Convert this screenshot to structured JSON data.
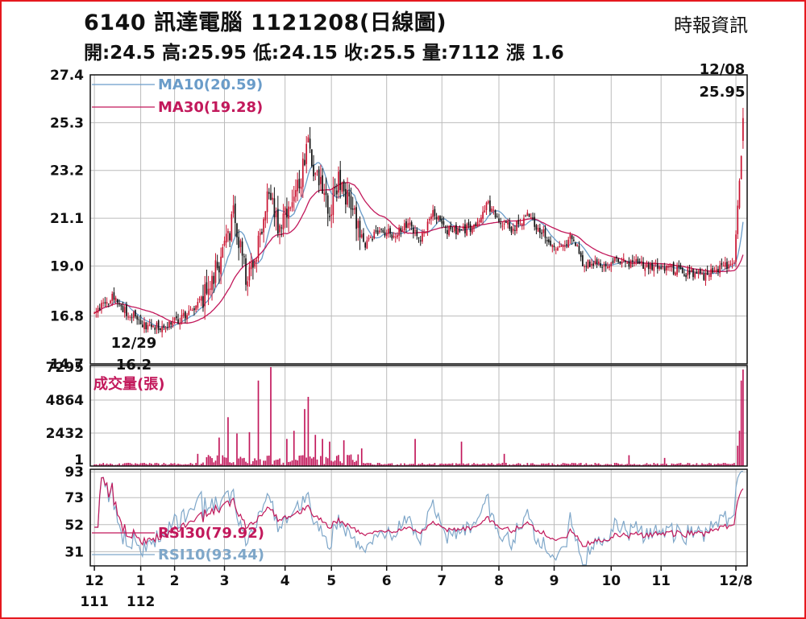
{
  "header": {
    "title": "6140  訊達電腦 1121208(日線圖)",
    "source": "時報資訊",
    "ohlc": "開:24.5 高:25.95 低:24.15 收:25.5 量:7112 漲 1.6"
  },
  "chart_data": {
    "type": "candlestick",
    "colors": {
      "up": "#c8102e",
      "down": "#111111",
      "ma10": "#6a9cc9",
      "ma30": "#c2185b",
      "volume": "#c2185b",
      "rsi30": "#c2185b",
      "rsi10": "#7fa7c9",
      "grid": "#bbbbbb"
    },
    "price_panel": {
      "yticks": [
        "27.4",
        "25.3",
        "23.2",
        "21.1",
        "19.0",
        "16.8",
        "14.7"
      ],
      "ylim": [
        14.7,
        27.4
      ],
      "legend": [
        {
          "label": "MA10(20.59)",
          "color": "#6a9cc9"
        },
        {
          "label": "MA30(19.28)",
          "color": "#c2185b"
        }
      ],
      "annotations": [
        {
          "date": "12/29",
          "value": "16.2"
        },
        {
          "date": "12/08",
          "value": "25.95"
        }
      ],
      "low_value": 16.2,
      "high_value": 25.95,
      "keypoints": [
        [
          0,
          17.1
        ],
        [
          5,
          17.3
        ],
        [
          10,
          17.6
        ],
        [
          18,
          17.0
        ],
        [
          25,
          16.6
        ],
        [
          32,
          16.3
        ],
        [
          40,
          16.4
        ],
        [
          48,
          16.7
        ],
        [
          55,
          16.9
        ],
        [
          60,
          17.5
        ],
        [
          65,
          18.4
        ],
        [
          72,
          19.5
        ],
        [
          78,
          21.2
        ],
        [
          83,
          19.2
        ],
        [
          86,
          18.3
        ],
        [
          92,
          20.0
        ],
        [
          97,
          22.0
        ],
        [
          104,
          20.8
        ],
        [
          110,
          21.6
        ],
        [
          116,
          23.0
        ],
        [
          120,
          24.3
        ],
        [
          126,
          22.6
        ],
        [
          132,
          21.4
        ],
        [
          137,
          22.8
        ],
        [
          142,
          22.1
        ],
        [
          148,
          20.6
        ],
        [
          152,
          20.0
        ],
        [
          160,
          20.6
        ],
        [
          168,
          20.4
        ],
        [
          176,
          20.9
        ],
        [
          182,
          20.1
        ],
        [
          190,
          21.3
        ],
        [
          198,
          20.6
        ],
        [
          206,
          20.5
        ],
        [
          214,
          20.8
        ],
        [
          220,
          21.8
        ],
        [
          226,
          21.2
        ],
        [
          234,
          20.6
        ],
        [
          242,
          21.2
        ],
        [
          248,
          20.8
        ],
        [
          256,
          20.1
        ],
        [
          262,
          19.7
        ],
        [
          268,
          20.3
        ],
        [
          274,
          19.2
        ],
        [
          282,
          19.0
        ],
        [
          292,
          19.2
        ],
        [
          302,
          19.1
        ],
        [
          312,
          19.0
        ],
        [
          322,
          18.9
        ],
        [
          332,
          18.7
        ],
        [
          342,
          18.6
        ],
        [
          350,
          18.9
        ],
        [
          356,
          19.0
        ],
        [
          359,
          19.2
        ],
        [
          361,
          21.6
        ],
        [
          363,
          23.9
        ],
        [
          364,
          25.5
        ]
      ]
    },
    "volume_panel": {
      "yticks": [
        "7295",
        "4864",
        "2432",
        "1"
      ],
      "ylim": [
        1,
        7295
      ],
      "label": "成交量(張)",
      "spikes": [
        [
          58,
          900
        ],
        [
          70,
          2100
        ],
        [
          75,
          3600
        ],
        [
          80,
          2400
        ],
        [
          87,
          2500
        ],
        [
          92,
          6300
        ],
        [
          99,
          7295
        ],
        [
          108,
          2000
        ],
        [
          112,
          2600
        ],
        [
          118,
          4200
        ],
        [
          120,
          5100
        ],
        [
          124,
          2300
        ],
        [
          128,
          2000
        ],
        [
          132,
          1800
        ],
        [
          140,
          1900
        ],
        [
          150,
          1300
        ],
        [
          180,
          2000
        ],
        [
          206,
          1800
        ],
        [
          230,
          900
        ],
        [
          300,
          800
        ],
        [
          320,
          600
        ],
        [
          361,
          1500
        ],
        [
          362,
          2600
        ],
        [
          363,
          6300
        ],
        [
          364,
          7112
        ]
      ]
    },
    "rsi_panel": {
      "yticks": [
        "93",
        "73",
        "52",
        "31"
      ],
      "ylim": [
        20,
        95
      ],
      "legend": [
        {
          "label": "RSI30(79.92)",
          "color": "#c2185b"
        },
        {
          "label": "RSI10(93.44)",
          "color": "#7fa7c9"
        }
      ],
      "last": {
        "rsi30": 79.92,
        "rsi10": 93.44
      }
    },
    "x_axis": {
      "n_days": 365,
      "ticks": [
        {
          "day": 0,
          "label": "12"
        },
        {
          "day": 26,
          "label": "1"
        },
        {
          "day": 45,
          "label": "2"
        },
        {
          "day": 73,
          "label": "3"
        },
        {
          "day": 107,
          "label": "4"
        },
        {
          "day": 133,
          "label": "5"
        },
        {
          "day": 164,
          "label": "6"
        },
        {
          "day": 195,
          "label": "7"
        },
        {
          "day": 227,
          "label": "8"
        },
        {
          "day": 258,
          "label": "9"
        },
        {
          "day": 290,
          "label": "10"
        },
        {
          "day": 318,
          "label": "11"
        },
        {
          "day": 360,
          "label": "12/8"
        }
      ],
      "years": [
        {
          "day": 0,
          "label": "111"
        },
        {
          "day": 26,
          "label": "112"
        }
      ]
    }
  }
}
